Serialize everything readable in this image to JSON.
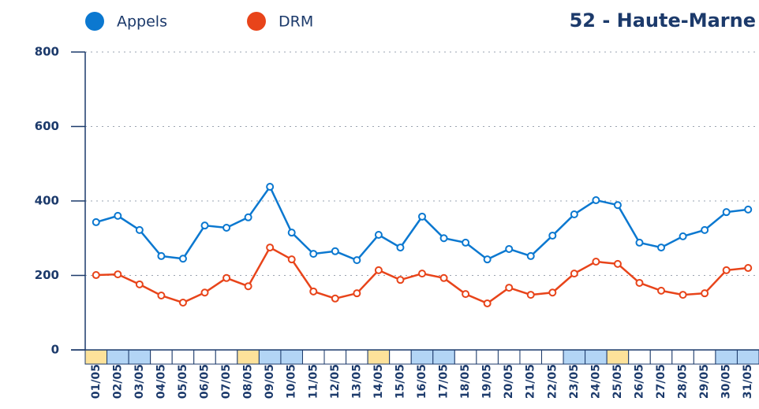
{
  "chart_data": {
    "type": "line",
    "title": "52 - Haute-Marne",
    "categories": [
      "01/05",
      "02/05",
      "03/05",
      "04/05",
      "05/05",
      "06/05",
      "07/05",
      "08/05",
      "09/05",
      "10/05",
      "11/05",
      "12/05",
      "13/05",
      "14/05",
      "15/05",
      "16/05",
      "17/05",
      "18/05",
      "19/05",
      "20/05",
      "21/05",
      "22/05",
      "23/05",
      "24/05",
      "25/05",
      "26/05",
      "27/05",
      "28/05",
      "29/05",
      "30/05",
      "31/05"
    ],
    "category_colors": [
      "#fde29a",
      "#b3d5f5",
      "#b3d5f5",
      null,
      null,
      null,
      null,
      "#fde29a",
      "#b3d5f5",
      "#b3d5f5",
      null,
      null,
      null,
      "#fde29a",
      null,
      "#b3d5f5",
      "#b3d5f5",
      null,
      null,
      null,
      null,
      null,
      "#b3d5f5",
      "#b3d5f5",
      "#fde29a",
      null,
      null,
      null,
      null,
      "#b3d5f5",
      "#b3d5f5"
    ],
    "series": [
      {
        "name": "Appels",
        "color": "#0b78d0",
        "values": [
          343,
          360,
          322,
          252,
          245,
          334,
          328,
          356,
          438,
          315,
          258,
          265,
          241,
          309,
          275,
          358,
          300,
          288,
          243,
          271,
          252,
          307,
          364,
          402,
          389,
          288,
          275,
          305,
          322,
          370,
          377
        ]
      },
      {
        "name": "DRM",
        "color": "#e8441a",
        "values": [
          201,
          203,
          176,
          146,
          127,
          154,
          193,
          171,
          275,
          243,
          157,
          138,
          152,
          214,
          188,
          205,
          193,
          150,
          125,
          167,
          148,
          154,
          205,
          237,
          231,
          180,
          159,
          148,
          152,
          214,
          220
        ]
      }
    ],
    "ylim": [
      0,
      800
    ],
    "yticks": [
      0,
      200,
      400,
      600,
      800
    ],
    "grid": true
  }
}
